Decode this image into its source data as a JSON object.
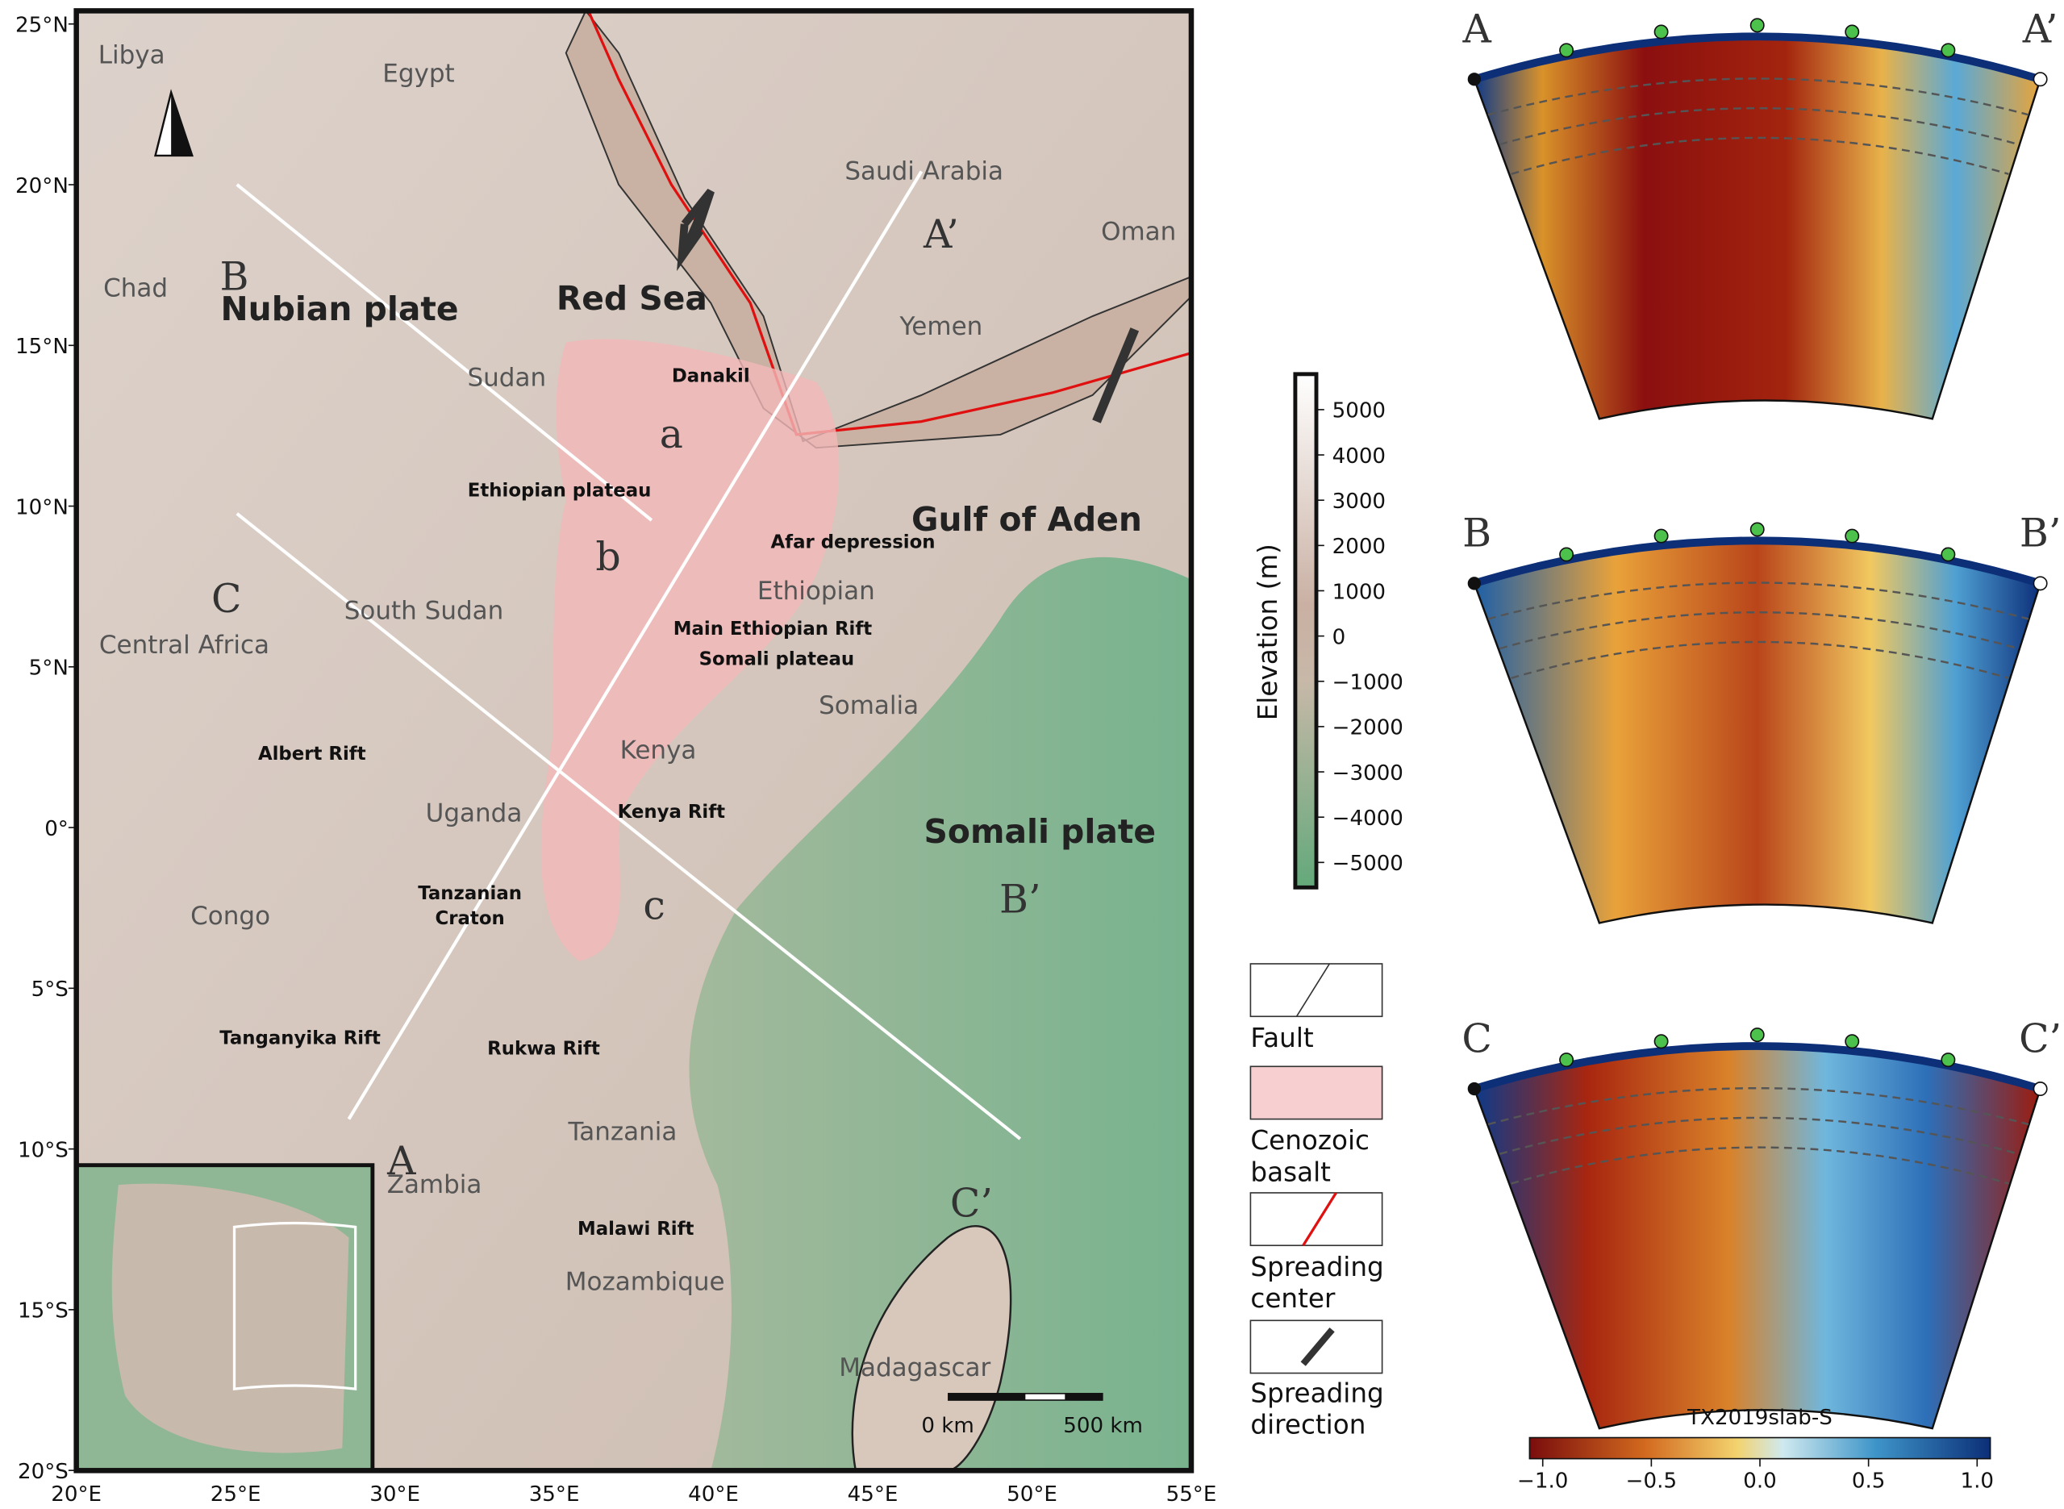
{
  "map": {
    "lat_ticks": [
      "25°N",
      "20°N",
      "15°N",
      "10°N",
      "5°N",
      "0°",
      "5°S",
      "10°S",
      "15°S",
      "20°S"
    ],
    "lon_ticks": [
      "20°E",
      "25°E",
      "30°E",
      "35°E",
      "40°E",
      "45°E",
      "50°E",
      "55°E"
    ],
    "countries": [
      "Libya",
      "Egypt",
      "Saudi Arabia",
      "Oman",
      "Chad",
      "Yemen",
      "Sudan",
      "Ethiopian",
      "South Sudan",
      "Central Africa",
      "Somalia",
      "Kenya",
      "Uganda",
      "Congo",
      "Tanzania",
      "Zambia",
      "Mozambique",
      "Madagascar"
    ],
    "plates": [
      "Nubian plate",
      "Red Sea",
      "Gulf of Aden",
      "Somali plate"
    ],
    "features": [
      "Danakil",
      "Ethiopian plateau",
      "Afar depression",
      "Main Ethiopian Rift",
      "Somali plateau",
      "Albert Rift",
      "Kenya Rift",
      "Tanganyika Rift",
      "Rukwa Rift",
      "Malawi Rift"
    ],
    "craton": [
      "Tanzanian",
      "Craton"
    ],
    "profile_labels": [
      "A’",
      "B",
      "C",
      "a",
      "b",
      "c",
      "B’",
      "A",
      "C’"
    ],
    "scale": [
      "0 km",
      "500 km"
    ]
  },
  "elevation_bar": {
    "title": "Elevation (m)",
    "ticks": [
      "5000",
      "4000",
      "3000",
      "2000",
      "1000",
      "0",
      "−1000",
      "−2000",
      "−3000",
      "−4000",
      "−5000"
    ]
  },
  "legend": [
    {
      "label": [
        "Fault"
      ]
    },
    {
      "label": [
        "Cenozoic",
        "basalt"
      ]
    },
    {
      "label": [
        "Spreading",
        "center"
      ]
    },
    {
      "label": [
        "Spreading",
        "direction"
      ]
    }
  ],
  "sections": [
    {
      "start": "A",
      "end": "A’"
    },
    {
      "start": "B",
      "end": "B’"
    },
    {
      "start": "C",
      "end": "C’"
    }
  ],
  "velocity_bar": {
    "title": "TX2019slab-S",
    "ticks": [
      "−1.0",
      "−0.5",
      "0.0",
      "0.5",
      "1.0"
    ]
  }
}
